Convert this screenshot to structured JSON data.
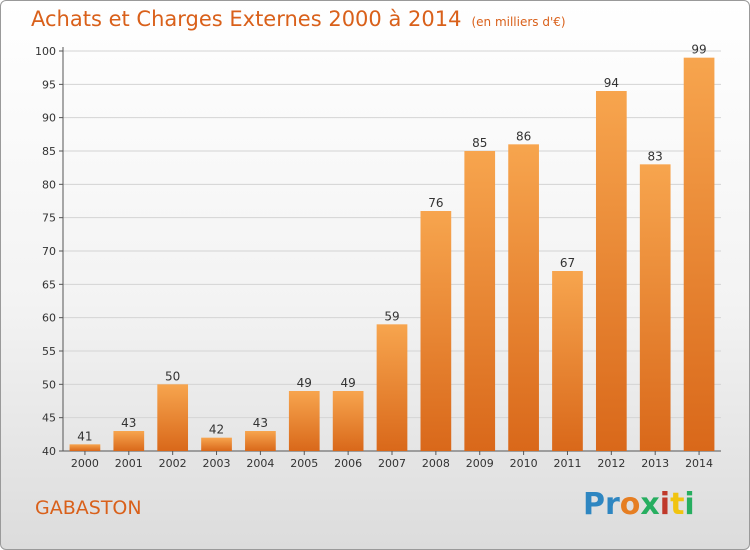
{
  "header": {
    "title": "Achats et Charges Externes 2000 à 2014",
    "subtitle": "(en milliers d'€)"
  },
  "footer": {
    "commune": "GABASTON",
    "brand": [
      "P",
      "r",
      "o",
      "x",
      "i",
      "t",
      "i"
    ],
    "brand_colors": [
      "#2e86c1",
      "#2e86c1",
      "#e67e22",
      "#27ae60",
      "#c0392b",
      "#f1c40f",
      "#27ae60"
    ]
  },
  "chart_data": {
    "type": "bar",
    "title": "Achats et Charges Externes 2000 à 2014",
    "subtitle": "(en milliers d'€)",
    "xlabel": "",
    "ylabel": "",
    "categories": [
      "2000",
      "2001",
      "2002",
      "2003",
      "2004",
      "2005",
      "2006",
      "2007",
      "2008",
      "2009",
      "2010",
      "2011",
      "2012",
      "2013",
      "2014"
    ],
    "values": [
      41,
      43,
      50,
      42,
      43,
      49,
      49,
      59,
      76,
      85,
      86,
      67,
      94,
      83,
      99
    ],
    "ylim": [
      40,
      100
    ],
    "yticks": [
      40,
      45,
      50,
      55,
      60,
      65,
      70,
      75,
      80,
      85,
      90,
      95,
      100
    ],
    "grid": true,
    "bar_color_top": "#f7a54e",
    "bar_color_bottom": "#d9681a",
    "grid_color": "#d4d4d4"
  }
}
